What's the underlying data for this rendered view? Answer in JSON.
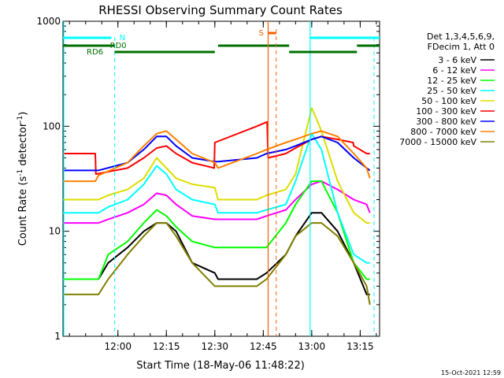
{
  "chart_data": {
    "type": "line",
    "title": "RHESSI Observing Summary Count Rates",
    "xlabel": "Start Time (18-May-06 11:48:22)",
    "ylabel_main": "Count Rate (s",
    "ylabel_sup1": "-1",
    "ylabel_mid": " detector",
    "ylabel_sup2": "-1",
    "ylabel_end": ")",
    "yscale": "log",
    "ylim": [
      1,
      1000
    ],
    "xlim_minutes_after_start": [
      -5,
      93
    ],
    "y_ticks": [
      {
        "value": 1,
        "label": "1"
      },
      {
        "value": 10,
        "label": "10"
      },
      {
        "value": 100,
        "label": "100"
      },
      {
        "value": 1000,
        "label": "1000"
      }
    ],
    "x_ticks": [
      {
        "value": 12,
        "label": "12:00"
      },
      {
        "value": 27,
        "label": "12:15"
      },
      {
        "value": 42,
        "label": "12:30"
      },
      {
        "value": 57,
        "label": "12:45"
      },
      {
        "value": 72,
        "label": "13:00"
      },
      {
        "value": 87,
        "label": "13:15"
      }
    ],
    "legend": {
      "placement": "right",
      "header": [
        "Det 1,3,4,5,6,9,",
        "FDecim 1, Att 0"
      ],
      "entries": [
        {
          "label": "3 - 6 keV",
          "color": "#000000"
        },
        {
          "label": "6 - 12 keV",
          "color": "#ff00ff"
        },
        {
          "label": "12 - 25 keV",
          "color": "#00ff00"
        },
        {
          "label": "25 - 50 keV",
          "color": "#00ffff"
        },
        {
          "label": "50 - 100 keV",
          "color": "#dddd00"
        },
        {
          "label": "100 - 300 keV",
          "color": "#ff0000"
        },
        {
          "label": "300 - 800 keV",
          "color": "#0000ff"
        },
        {
          "label": "800 - 7000 keV",
          "color": "#ff8000"
        },
        {
          "label": "7000 - 15000 keV",
          "color": "#808000"
        }
      ]
    },
    "flags": [
      {
        "label": "N",
        "color": "#00ffff"
      },
      {
        "label": "RD0",
        "color": "#007000"
      },
      {
        "label": "RD6",
        "color": "#007000"
      },
      {
        "label": "S",
        "color": "#ff6000"
      }
    ],
    "series": [
      {
        "name": "3 - 6 keV",
        "color": "#000000",
        "x": [
          -5,
          6,
          9,
          15,
          20,
          24,
          27,
          30,
          35,
          42,
          43,
          55,
          58,
          64,
          67,
          72,
          75,
          80,
          85,
          89,
          90
        ],
        "values": [
          3.5,
          3.5,
          5,
          7,
          10,
          12,
          12,
          10,
          5,
          4,
          3.5,
          3.5,
          4,
          6,
          9,
          15,
          15,
          10,
          5,
          2.5,
          2.5
        ]
      },
      {
        "name": "6 - 12 keV",
        "color": "#ff00ff",
        "x": [
          -5,
          6,
          9,
          15,
          20,
          24,
          27,
          30,
          35,
          42,
          43,
          55,
          58,
          64,
          67,
          72,
          75,
          80,
          85,
          89,
          90
        ],
        "values": [
          12,
          12,
          13,
          15,
          18,
          23,
          22,
          18,
          14,
          13,
          13,
          13,
          14,
          16,
          20,
          28,
          30,
          25,
          20,
          18,
          15
        ]
      },
      {
        "name": "12 - 25 keV",
        "color": "#00ff00",
        "x": [
          -5,
          6,
          9,
          15,
          20,
          24,
          27,
          30,
          35,
          42,
          43,
          55,
          58,
          64,
          67,
          72,
          75,
          80,
          85,
          89,
          90
        ],
        "values": [
          3.5,
          3.5,
          6,
          8,
          12,
          16,
          14,
          11,
          8,
          7,
          7,
          7,
          7,
          12,
          18,
          30,
          30,
          15,
          5,
          3.5,
          3.5
        ]
      },
      {
        "name": "25 - 50 keV",
        "color": "#00ffff",
        "x": [
          -5,
          6,
          9,
          15,
          20,
          24,
          27,
          30,
          35,
          42,
          43,
          55,
          58,
          64,
          67,
          72,
          75,
          80,
          85,
          89,
          90
        ],
        "values": [
          15,
          15,
          17,
          20,
          28,
          42,
          35,
          25,
          20,
          18,
          15,
          15,
          16,
          18,
          30,
          85,
          60,
          15,
          6,
          5,
          5
        ]
      },
      {
        "name": "50 - 100 keV",
        "color": "#dddd00",
        "x": [
          -5,
          6,
          9,
          15,
          20,
          24,
          27,
          30,
          35,
          42,
          43,
          55,
          58,
          64,
          67,
          72,
          75,
          80,
          85,
          89,
          90
        ],
        "values": [
          20,
          20,
          22,
          25,
          32,
          50,
          40,
          32,
          28,
          26,
          20,
          20,
          22,
          25,
          35,
          150,
          90,
          30,
          15,
          12,
          12
        ]
      },
      {
        "name": "100 - 300 keV",
        "color": "#ff0000",
        "x": [
          -5,
          5,
          5.2,
          15,
          20,
          24,
          27,
          30,
          35,
          41.8,
          42,
          55,
          58.2,
          58.5,
          64,
          67,
          72,
          75,
          80,
          84.8,
          85,
          89,
          90
        ],
        "values": [
          55,
          55,
          35,
          40,
          50,
          62,
          65,
          55,
          45,
          40,
          70,
          100,
          110,
          50,
          55,
          62,
          75,
          80,
          75,
          70,
          65,
          55,
          55
        ]
      },
      {
        "name": "300 - 800 keV",
        "color": "#0000ff",
        "x": [
          -5,
          5,
          6,
          15,
          20,
          24,
          27,
          30,
          35,
          42,
          43,
          55,
          58,
          64,
          67,
          72,
          75,
          80,
          85,
          89,
          90
        ],
        "values": [
          38,
          38,
          38,
          45,
          60,
          80,
          80,
          65,
          50,
          46,
          46,
          50,
          55,
          60,
          65,
          75,
          80,
          70,
          50,
          40,
          38
        ]
      },
      {
        "name": "800 - 7000 keV",
        "color": "#ff8000",
        "x": [
          -5,
          5,
          6,
          15,
          20,
          24,
          27,
          30,
          35,
          42,
          43,
          55,
          58,
          64,
          67,
          72,
          75,
          80,
          85,
          89,
          90
        ],
        "values": [
          30,
          30,
          34,
          45,
          65,
          85,
          90,
          75,
          55,
          45,
          40,
          55,
          60,
          70,
          75,
          85,
          90,
          80,
          55,
          40,
          32
        ]
      },
      {
        "name": "7000 - 15000 keV",
        "color": "#808000",
        "x": [
          -5,
          6,
          9,
          15,
          20,
          24,
          27,
          30,
          35,
          42,
          43,
          55,
          58,
          64,
          67,
          72,
          75,
          80,
          85,
          89,
          90
        ],
        "values": [
          2.5,
          2.5,
          3.5,
          6,
          9,
          12,
          12,
          9,
          5,
          3,
          3,
          3,
          3.5,
          6,
          9,
          12,
          12,
          9,
          5,
          3,
          2
        ]
      }
    ]
  },
  "footer_timestamp": "15-Oct-2021 12:59"
}
